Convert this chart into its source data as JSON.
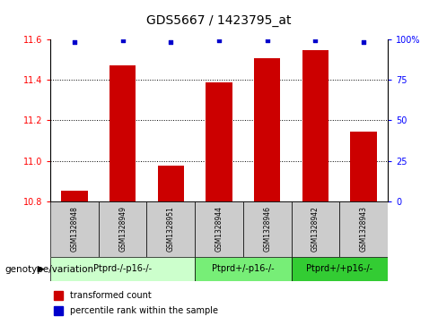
{
  "title": "GDS5667 / 1423795_at",
  "samples": [
    "GSM1328948",
    "GSM1328949",
    "GSM1328951",
    "GSM1328944",
    "GSM1328946",
    "GSM1328942",
    "GSM1328943"
  ],
  "bar_values": [
    10.855,
    11.47,
    10.975,
    11.385,
    11.505,
    11.545,
    11.145
  ],
  "percentile_values": [
    98,
    99,
    98,
    99,
    99,
    99,
    98
  ],
  "ylim_left": [
    10.8,
    11.6
  ],
  "ylim_right": [
    0,
    100
  ],
  "yticks_left": [
    10.8,
    11.0,
    11.2,
    11.4,
    11.6
  ],
  "yticks_right": [
    0,
    25,
    50,
    75,
    100
  ],
  "bar_color": "#cc0000",
  "dot_color": "#0000cc",
  "bar_width": 0.55,
  "groups": [
    {
      "label": "Ptprd-/-p16-/-",
      "samples": [
        "GSM1328948",
        "GSM1328949",
        "GSM1328951"
      ],
      "color": "#ccffcc"
    },
    {
      "label": "Ptprd+/-p16-/-",
      "samples": [
        "GSM1328944",
        "GSM1328946"
      ],
      "color": "#77ee77"
    },
    {
      "label": "Ptprd+/+p16-/-",
      "samples": [
        "GSM1328942",
        "GSM1328943"
      ],
      "color": "#33cc33"
    }
  ],
  "genotype_label": "genotype/variation",
  "legend_bar_label": "transformed count",
  "legend_dot_label": "percentile rank within the sample",
  "sample_box_color": "#cccccc",
  "title_fontsize": 10,
  "tick_fontsize": 7,
  "sample_fontsize": 5.5,
  "group_fontsize": 7,
  "legend_fontsize": 7,
  "genotype_fontsize": 7.5
}
